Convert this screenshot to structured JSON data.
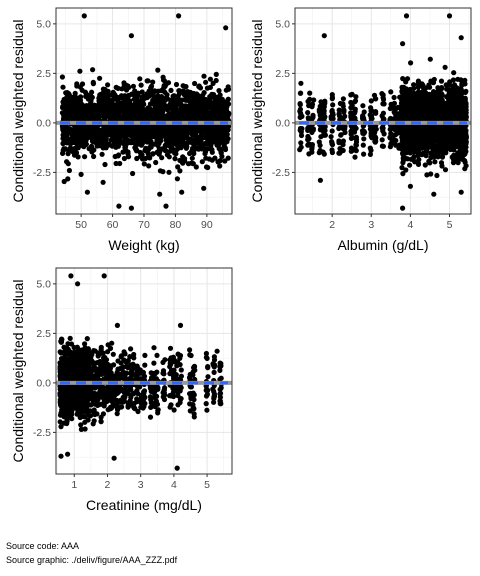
{
  "chart_data": [
    {
      "type": "scatter",
      "xlabel": "Weight (kg)",
      "ylabel": "Conditional weighted residual",
      "xlim": [
        42,
        98
      ],
      "ylim": [
        -4.6,
        5.8
      ],
      "xticks": [
        50,
        60,
        70,
        80,
        90
      ],
      "xtick_labels": [
        "50",
        "60",
        "70",
        "80",
        "90"
      ],
      "yticks": [
        -2.5,
        0,
        2.5,
        5
      ],
      "ytick_labels": [
        "-2.5",
        "0.0",
        "2.5",
        "5.0"
      ],
      "grid": true,
      "reference_line": {
        "y": 0,
        "color": "#999999"
      },
      "smooth_color": "#3366ff",
      "point_color": "#000000",
      "distribution": {
        "type": "continuous",
        "range": [
          44,
          97
        ],
        "spread": 0.85
      },
      "notable_points": [
        [
          51,
          5.4
        ],
        [
          81,
          5.4
        ],
        [
          96,
          4.8
        ],
        [
          66,
          4.4
        ],
        [
          50,
          -2.6
        ],
        [
          52,
          -3.5
        ],
        [
          62,
          -4.2
        ],
        [
          66,
          -4.3
        ],
        [
          77,
          -4.2
        ],
        [
          82,
          -3.5
        ],
        [
          75,
          -3.6
        ],
        [
          57,
          -3.0
        ],
        [
          89,
          -3.3
        ]
      ]
    },
    {
      "type": "scatter",
      "xlabel": "Albumin (g/dL)",
      "ylabel": "Conditional weighted residual",
      "xlim": [
        1.05,
        5.55
      ],
      "ylim": [
        -4.6,
        5.8
      ],
      "xticks": [
        2,
        3,
        4,
        5
      ],
      "xtick_labels": [
        "2",
        "3",
        "4",
        "5"
      ],
      "yticks": [
        -2.5,
        0,
        2.5,
        5
      ],
      "ytick_labels": [
        "-2.5",
        "0.0",
        "2.5",
        "5.0"
      ],
      "grid": true,
      "reference_line": {
        "y": 0,
        "color": "#999999"
      },
      "smooth_color": "#3366ff",
      "point_color": "#000000",
      "distribution": {
        "type": "columns",
        "columns": [
          1.2,
          1.4,
          1.5,
          1.7,
          1.8,
          2.0,
          2.2,
          2.3,
          2.5,
          2.6,
          2.8,
          3.0,
          3.1,
          3.3,
          3.5,
          3.6,
          3.7,
          3.8,
          3.9,
          4.0,
          4.1,
          4.2,
          4.3,
          4.4,
          4.5,
          4.6,
          4.7,
          4.8,
          4.9,
          5.0,
          5.1,
          5.2,
          5.3,
          5.4
        ],
        "spread": 0.85
      },
      "notable_points": [
        [
          1.8,
          4.4
        ],
        [
          3.9,
          5.4
        ],
        [
          5.0,
          5.4
        ],
        [
          3.8,
          4.0
        ],
        [
          5.3,
          4.3
        ],
        [
          1.2,
          2.0
        ],
        [
          1.7,
          -2.9
        ],
        [
          3.8,
          -4.3
        ],
        [
          4.6,
          -3.6
        ],
        [
          5.3,
          -3.5
        ],
        [
          4.0,
          -3.2
        ]
      ]
    },
    {
      "type": "scatter",
      "xlabel": "Creatinine (mg/dL)",
      "ylabel": "Conditional weighted residual",
      "xlim": [
        0.45,
        5.75
      ],
      "ylim": [
        -4.6,
        5.8
      ],
      "xticks": [
        1,
        2,
        3,
        4,
        5
      ],
      "xtick_labels": [
        "1",
        "2",
        "3",
        "4",
        "5"
      ],
      "yticks": [
        -2.5,
        0,
        2.5,
        5
      ],
      "ytick_labels": [
        "-2.5",
        "0.0",
        "2.5",
        "5.0"
      ],
      "grid": true,
      "reference_line": {
        "y": 0,
        "color": "#999999"
      },
      "smooth_color": "#3366ff",
      "point_color": "#000000",
      "distribution": {
        "type": "columns",
        "columns": [
          0.6,
          0.7,
          0.8,
          0.9,
          1.0,
          1.1,
          1.2,
          1.3,
          1.4,
          1.5,
          1.6,
          1.7,
          1.8,
          1.9,
          2.0,
          2.1,
          2.2,
          2.3,
          2.4,
          2.5,
          2.6,
          2.7,
          2.8,
          2.9,
          3.0,
          3.1,
          3.3,
          3.4,
          3.5,
          3.7,
          3.9,
          4.0,
          4.1,
          4.2,
          4.5,
          4.6,
          5.0,
          5.2,
          5.4
        ],
        "spread": 0.8
      },
      "notable_points": [
        [
          0.9,
          5.4
        ],
        [
          1.1,
          5.0
        ],
        [
          1.9,
          5.4
        ],
        [
          0.6,
          -3.7
        ],
        [
          0.8,
          -3.6
        ],
        [
          2.2,
          -3.8
        ],
        [
          4.1,
          -4.3
        ],
        [
          2.3,
          2.9
        ],
        [
          4.2,
          2.9
        ],
        [
          5.3,
          1.6
        ]
      ]
    }
  ],
  "caption": {
    "line1": "Source code: AAA",
    "line2": "Source graphic: ./deliv/figure/AAA_ZZZ.pdf"
  }
}
